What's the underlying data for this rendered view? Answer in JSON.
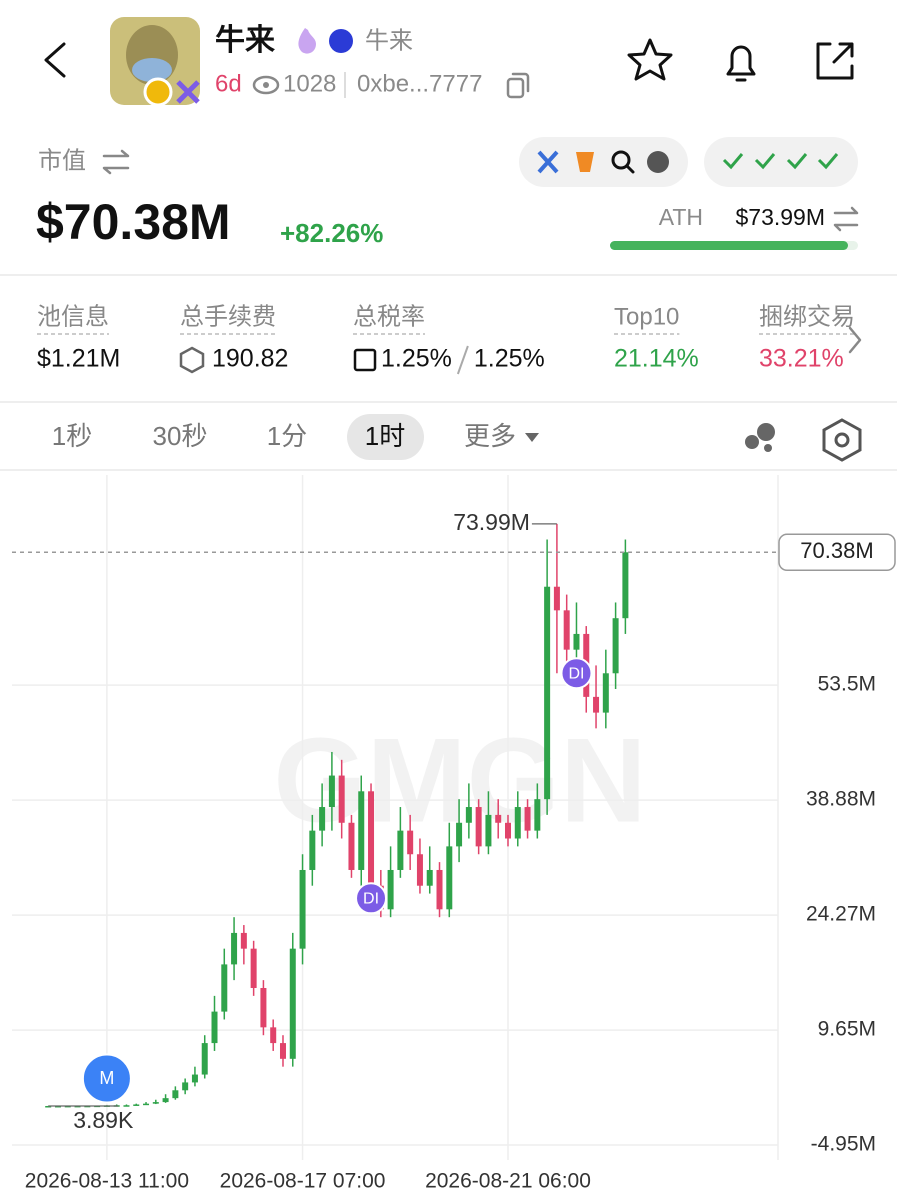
{
  "header": {
    "name": "牛来",
    "badge_name": "牛来",
    "age": "6d",
    "views": "1028",
    "address": "0xbe...7777"
  },
  "market": {
    "label": "市值",
    "value": "$70.38M",
    "change": "+82.26%",
    "ath_label": "ATH",
    "ath_value": "$73.99M"
  },
  "stats": [
    {
      "label": "池信息",
      "value": "$1.21M"
    },
    {
      "label": "总手续费",
      "value": "190.82"
    },
    {
      "label": "总税率",
      "value": "1.25%",
      "value2": "1.25%"
    },
    {
      "label": "Top10",
      "value": "21.14%"
    },
    {
      "label": "捆绑交易",
      "value": "33.21%"
    }
  ],
  "tabs": [
    "1秒",
    "30秒",
    "1分",
    "1时",
    "更多"
  ],
  "watermark": "GMGN",
  "chart_data": {
    "type": "candlestick",
    "xlim": [
      -3.7,
      74.6
    ],
    "ylim": [
      -6.86,
      80.2
    ],
    "xticks": [
      {
        "value": 6,
        "label": "2026-08-13 11:00"
      },
      {
        "value": 26,
        "label": "2026-08-17 07:00"
      },
      {
        "value": 47,
        "label": "2026-08-21 06:00"
      }
    ],
    "yticks": [
      {
        "value": -4.95,
        "label": "-4.95M"
      },
      {
        "value": 9.65,
        "label": "9.65M"
      },
      {
        "value": 24.27,
        "label": "24.27M"
      },
      {
        "value": 38.88,
        "label": "38.88M"
      },
      {
        "value": 53.5,
        "label": "53.5M"
      }
    ],
    "up_color": "#2fa34a",
    "down_color": "#e0436a",
    "open": [
      0.00389,
      0.004,
      0.01,
      0.02,
      0.02,
      0.03,
      0.05,
      0.08,
      0.1,
      0.1,
      0.2,
      0.3,
      0.5,
      1,
      2,
      3,
      4,
      8,
      12,
      18,
      22,
      20,
      15,
      10,
      8,
      6,
      20,
      30,
      35,
      38,
      42,
      36,
      30,
      40,
      28,
      25,
      30,
      35,
      32,
      28,
      30,
      25,
      33,
      36,
      38,
      33,
      37,
      36,
      34,
      38,
      35,
      39,
      66,
      63,
      58,
      60,
      52,
      50,
      55,
      62
    ],
    "high": [
      0.01,
      0.02,
      0.03,
      0.03,
      0.04,
      0.06,
      0.1,
      0.2,
      0.2,
      0.3,
      0.5,
      0.8,
      1.5,
      2.5,
      3.5,
      5,
      9,
      14,
      20,
      24,
      23,
      21,
      16,
      11,
      9,
      22,
      32,
      37,
      41,
      45,
      44,
      37,
      42,
      41,
      30,
      33,
      38,
      37,
      34,
      33,
      31,
      36,
      39,
      41,
      39,
      40,
      39,
      37,
      40,
      39,
      41,
      72,
      73.99,
      65,
      64,
      61,
      56,
      58,
      64,
      72
    ],
    "low": [
      0,
      0,
      0,
      0.01,
      0.01,
      0.02,
      0.04,
      0.06,
      0.05,
      0.08,
      0.15,
      0.25,
      0.4,
      0.8,
      1.5,
      2.5,
      3.5,
      7,
      11,
      16,
      18,
      14,
      9,
      7,
      5,
      5,
      18,
      28,
      33,
      35,
      34,
      29,
      28,
      26,
      24,
      24,
      29,
      30,
      27,
      27,
      24,
      24,
      31,
      34,
      32,
      32,
      34,
      33,
      33,
      34,
      34,
      37,
      55,
      55,
      56,
      50,
      48,
      48,
      53,
      60
    ],
    "close": [
      0.004,
      0.01,
      0.02,
      0.02,
      0.03,
      0.05,
      0.08,
      0.1,
      0.1,
      0.2,
      0.3,
      0.5,
      1,
      2,
      3,
      4,
      8,
      12,
      18,
      22,
      20,
      15,
      10,
      8,
      6,
      20,
      30,
      35,
      38,
      42,
      36,
      30,
      40,
      28,
      25,
      30,
      35,
      32,
      28,
      30,
      25,
      33,
      36,
      38,
      33,
      37,
      36,
      34,
      38,
      35,
      39,
      66,
      63,
      58,
      60,
      52,
      50,
      55,
      62,
      70.38
    ],
    "price_line": {
      "value": 70.38,
      "label": "70.38M"
    },
    "high_annotation": {
      "index": 52,
      "value": 73.99,
      "label": "73.99M"
    },
    "low_annotation": {
      "index": 0,
      "value": 0.00389,
      "label": "3.89K"
    },
    "markers": [
      {
        "index": 6,
        "value": 3.5,
        "label": "M",
        "color": "#3b82f6"
      },
      {
        "index": 33,
        "value": 26.4,
        "label": "DI",
        "color": "#7c5ce6"
      },
      {
        "index": 54,
        "value": 55,
        "label": "DI",
        "color": "#7c5ce6"
      }
    ]
  }
}
